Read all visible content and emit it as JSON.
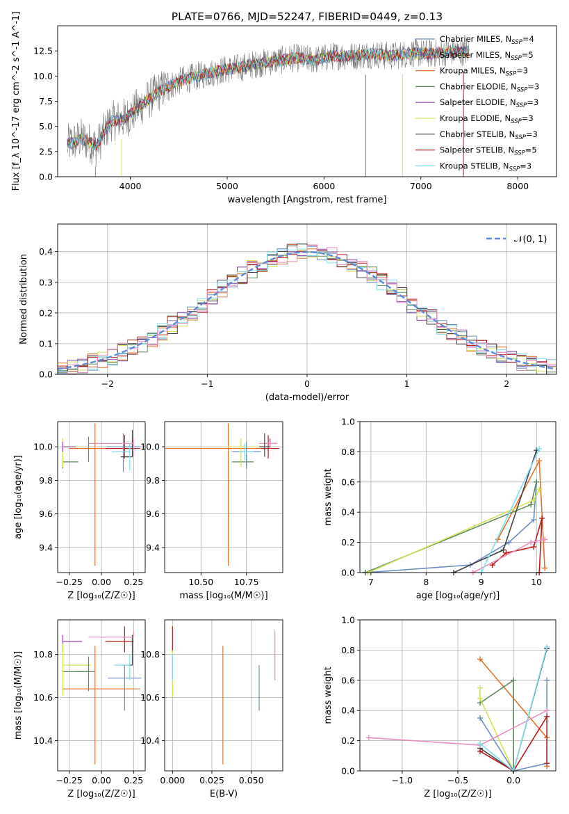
{
  "chart_data": [
    {
      "type": "line",
      "title": "PLATE=0766, MJD=52247, FIBERID=0449, z=0.13",
      "xlabel": "wavelength [Angstrom, rest frame]",
      "ylabel": "Flux [f_λ 10^-17 erg cm^-2 s^-1 A^-1]",
      "xlim": [
        3250,
        8400
      ],
      "ylim": [
        0,
        15
      ],
      "xticks": [
        "4000",
        "5000",
        "6000",
        "7000",
        "8000"
      ],
      "yticks": [
        "0.0",
        "2.5",
        "5.0",
        "7.5",
        "10.0",
        "12.5"
      ],
      "legend_position": "top-right",
      "spectrum_envelope": {
        "x": [
          3350,
          3500,
          3650,
          3800,
          3950,
          4100,
          4300,
          4500,
          4700,
          4900,
          5100,
          5300,
          5500,
          5700,
          5900,
          6100,
          6300,
          6500,
          6700,
          6900,
          7100,
          7300,
          7500
        ],
        "y": [
          3.2,
          3.8,
          3.0,
          5.5,
          5.8,
          7.0,
          8.5,
          9.5,
          10.0,
          10.5,
          10.8,
          11.2,
          11.5,
          11.8,
          11.6,
          12.0,
          12.0,
          12.2,
          12.0,
          12.3,
          12.2,
          12.4,
          12.4
        ]
      },
      "series": [
        {
          "name": "Chabrier MILES, N_SSP=4",
          "color": "#6c8ebf"
        },
        {
          "name": "Salpeter MILES, N_SSP=5",
          "color": "#5c6bc0"
        },
        {
          "name": "Kroupa MILES, N_SSP=3",
          "color": "#e0712c"
        },
        {
          "name": "Chabrier ELODIE, N_SSP=3",
          "color": "#5e8a5e"
        },
        {
          "name": "Salpeter ELODIE, N_SSP=3",
          "color": "#8e44ad"
        },
        {
          "name": "Kroupa ELODIE, N_SSP=3",
          "color": "#d4e157"
        },
        {
          "name": "Chabrier STELIB, N_SSP=3",
          "color": "#424242"
        },
        {
          "name": "Salpeter STELIB, N_SSP=5",
          "color": "#b71c1c"
        },
        {
          "name": "Kroupa STELIB, N_SSP=3",
          "color": "#80deea"
        }
      ]
    },
    {
      "type": "line",
      "xlabel": "(data-model)/error",
      "ylabel": "Normed distribution",
      "xlim": [
        -2.5,
        2.5
      ],
      "ylim": [
        0,
        0.49
      ],
      "xticks": [
        "−2",
        "−1",
        "0",
        "1",
        "2"
      ],
      "yticks": [
        "0.0",
        "0.1",
        "0.2",
        "0.3",
        "0.4"
      ],
      "grid": true,
      "legend_position": "top-right",
      "reference": {
        "name": "𝒩(0, 1)",
        "mean": 0,
        "sigma": 1,
        "color": "#5b8bd6"
      },
      "histogram_bin_width": 0.1
    },
    {
      "type": "scatter",
      "xlabel": "Z [log₁₀(Z/Z☉)]",
      "ylabel": "age  [log₁₀(age/yr)]",
      "xlim": [
        -0.34,
        0.34
      ],
      "ylim": [
        9.25,
        10.15
      ],
      "xticks": [
        "−0.25",
        "0.00",
        "0.25"
      ],
      "yticks": [
        "9.4",
        "9.6",
        "9.8",
        "10.0"
      ],
      "points": [
        {
          "x": -0.3,
          "y": 9.91,
          "color": "#5e8a5e",
          "xerr": [
            0.0,
            0.12
          ],
          "yerr": [
            0.04,
            0.04
          ]
        },
        {
          "x": -0.3,
          "y": 10.0,
          "color": "#d4e157",
          "xerr": [
            0.0,
            0.15
          ],
          "yerr": [
            0.12,
            0.05
          ]
        },
        {
          "x": -0.3,
          "y": 10.0,
          "color": "#8e44ad",
          "xerr": [
            0.0,
            0.1
          ],
          "yerr": [
            0.03,
            0.03
          ]
        },
        {
          "x": -0.1,
          "y": 9.99,
          "color": "#5e8a5e",
          "xerr": [
            0.06,
            0.06
          ],
          "yerr": [
            0.08,
            0.07
          ]
        },
        {
          "x": -0.05,
          "y": 9.99,
          "color": "#e0712c",
          "xerr": [
            0.2,
            0.3
          ],
          "yerr": [
            0.7,
            0.15
          ]
        },
        {
          "x": 0.18,
          "y": 9.99,
          "color": "#b71c1c",
          "xerr": [
            0.15,
            0.12
          ],
          "yerr": [
            0.06,
            0.08
          ]
        },
        {
          "x": 0.17,
          "y": 10.0,
          "color": "#6c8ebf",
          "xerr": [
            0.13,
            0.13
          ],
          "yerr": [
            0.15,
            0.08
          ]
        },
        {
          "x": 0.24,
          "y": 9.94,
          "color": "#424242",
          "xerr": [
            0.09,
            0.0
          ],
          "yerr": [
            0.0,
            0.16
          ]
        },
        {
          "x": 0.25,
          "y": 10.02,
          "color": "#e88fc0",
          "xerr": [
            0.35,
            0.0
          ],
          "yerr": [
            0.08,
            0.03
          ]
        },
        {
          "x": 0.22,
          "y": 9.97,
          "color": "#80deea",
          "xerr": [
            0.14,
            0.0
          ],
          "yerr": [
            0.11,
            0.05
          ]
        }
      ]
    },
    {
      "type": "scatter",
      "xlabel": "mass [log₁₀(M/M☉)]",
      "xlim": [
        10.3,
        10.95
      ],
      "ylim": [
        9.25,
        10.15
      ],
      "xticks": [
        "10.50",
        "10.75"
      ],
      "yticks": [
        "9.4",
        "9.6",
        "9.8",
        "10.0"
      ],
      "points": [
        {
          "x": 10.65,
          "y": 9.99,
          "color": "#e0712c",
          "xerr": [
            0.36,
            0.2
          ],
          "yerr": [
            0.7,
            0.15
          ]
        },
        {
          "x": 10.75,
          "y": 9.91,
          "color": "#5e8a5e",
          "xerr": [
            0.08,
            0.04
          ],
          "yerr": [
            0.04,
            0.04
          ]
        },
        {
          "x": 10.72,
          "y": 10.0,
          "color": "#d4e157",
          "xerr": [
            0.08,
            0.12
          ],
          "yerr": [
            0.12,
            0.05
          ]
        },
        {
          "x": 10.87,
          "y": 9.99,
          "color": "#b71c1c",
          "xerr": [
            0.04,
            0.06
          ],
          "yerr": [
            0.06,
            0.08
          ]
        },
        {
          "x": 10.88,
          "y": 10.02,
          "color": "#8e44ad",
          "xerr": [
            0.04,
            0.04
          ],
          "yerr": [
            0.03,
            0.03
          ]
        },
        {
          "x": 10.75,
          "y": 9.97,
          "color": "#6c8ebf",
          "xerr": [
            0.08,
            0.08
          ],
          "yerr": [
            0.1,
            0.06
          ]
        },
        {
          "x": 10.88,
          "y": 10.02,
          "color": "#e88fc0",
          "xerr": [
            0.06,
            0.04
          ],
          "yerr": [
            0.03,
            0.01
          ]
        },
        {
          "x": 10.85,
          "y": 10.0,
          "color": "#424242",
          "xerr": [
            0.03,
            0.03
          ],
          "yerr": [
            0.06,
            0.08
          ]
        },
        {
          "x": 10.74,
          "y": 9.97,
          "color": "#80deea",
          "xerr": [
            0.03,
            0.05
          ],
          "yerr": [
            0.05,
            0.05
          ]
        }
      ]
    },
    {
      "type": "line",
      "xlabel": "age  [log₁₀(age/yr)]",
      "ylabel": "mass weight",
      "xlim": [
        6.8,
        10.35
      ],
      "ylim": [
        0,
        1
      ],
      "xticks": [
        "7",
        "8",
        "9",
        "10"
      ],
      "yticks": [
        "0.0",
        "0.2",
        "0.4",
        "0.6",
        "0.8",
        "1.0"
      ],
      "grid": true,
      "series": [
        {
          "color": "#6c8ebf",
          "x": [
            6.9,
            8.8,
            9.5,
            9.95,
            10.0
          ],
          "y": [
            0.0,
            0.05,
            0.2,
            0.35,
            0.6
          ]
        },
        {
          "color": "#e0712c",
          "x": [
            9.3,
            10.05,
            10.15
          ],
          "y": [
            0.22,
            0.74,
            0.03
          ]
        },
        {
          "color": "#5e8a5e",
          "x": [
            6.9,
            9.9,
            10.0
          ],
          "y": [
            0.0,
            0.45,
            0.6
          ]
        },
        {
          "color": "#d4e157",
          "x": [
            6.95,
            9.95,
            10.05
          ],
          "y": [
            0.0,
            0.48,
            0.55
          ]
        },
        {
          "color": "#424242",
          "x": [
            8.5,
            9.4,
            10.0
          ],
          "y": [
            0.0,
            0.15,
            0.81
          ]
        },
        {
          "color": "#b71c1c",
          "x": [
            9.2,
            9.45,
            9.95,
            10.1,
            10.05
          ],
          "y": [
            0.05,
            0.13,
            0.17,
            0.36,
            0.0
          ]
        },
        {
          "color": "#e88fc0",
          "x": [
            8.85,
            9.9,
            10.15
          ],
          "y": [
            0.0,
            0.2,
            0.22
          ]
        },
        {
          "color": "#80deea",
          "x": [
            9.0,
            10.05
          ],
          "y": [
            0.0,
            0.82
          ]
        }
      ]
    },
    {
      "type": "scatter",
      "xlabel": "Z [log₁₀(Z/Z☉)]",
      "ylabel": "mass [log₁₀(M/M☉)]",
      "xlim": [
        -0.34,
        0.34
      ],
      "ylim": [
        10.26,
        10.96
      ],
      "xticks": [
        "−0.25",
        "0.00",
        "0.25"
      ],
      "yticks": [
        "10.4",
        "10.6",
        "10.8"
      ],
      "points": [
        {
          "x": -0.3,
          "y": 10.86,
          "color": "#8e44ad",
          "xerr": [
            0.0,
            0.15
          ],
          "yerr": [
            0.05,
            0.03
          ]
        },
        {
          "x": -0.3,
          "y": 10.72,
          "color": "#5e8a5e",
          "xerr": [
            0.0,
            0.2
          ],
          "yerr": [
            0.0,
            0.0
          ]
        },
        {
          "x": -0.3,
          "y": 10.75,
          "color": "#d4e157",
          "xerr": [
            0.0,
            0.22
          ],
          "yerr": [
            0.14,
            0.1
          ]
        },
        {
          "x": -0.1,
          "y": 10.72,
          "color": "#5e8a5e",
          "xerr": [
            0.1,
            0.05
          ],
          "yerr": [
            0.09,
            0.07
          ]
        },
        {
          "x": -0.05,
          "y": 10.64,
          "color": "#e0712c",
          "xerr": [
            0.25,
            0.35
          ],
          "yerr": [
            0.35,
            0.2
          ]
        },
        {
          "x": 0.18,
          "y": 10.86,
          "color": "#b71c1c",
          "xerr": [
            0.15,
            0.07
          ],
          "yerr": [
            0.05,
            0.07
          ]
        },
        {
          "x": 0.18,
          "y": 10.69,
          "color": "#6c8ebf",
          "xerr": [
            0.13,
            0.13
          ],
          "yerr": [
            0.15,
            0.06
          ]
        },
        {
          "x": 0.24,
          "y": 10.75,
          "color": "#424242",
          "xerr": [
            0.08,
            0.0
          ],
          "yerr": [
            0.0,
            0.14
          ]
        },
        {
          "x": 0.25,
          "y": 10.88,
          "color": "#e88fc0",
          "xerr": [
            0.35,
            0.0
          ],
          "yerr": [
            0.0,
            0.03
          ]
        },
        {
          "x": 0.22,
          "y": 10.75,
          "color": "#80deea",
          "xerr": [
            0.12,
            0.0
          ],
          "yerr": [
            0.07,
            0.05
          ]
        }
      ]
    },
    {
      "type": "scatter",
      "xlabel": "E(B-V)",
      "xlim": [
        -0.005,
        0.07
      ],
      "ylim": [
        10.26,
        10.96
      ],
      "xticks": [
        "0.000",
        "0.025",
        "0.050"
      ],
      "yticks": [
        "10.4",
        "10.6",
        "10.8"
      ],
      "points": [
        {
          "x": 0.0,
          "y": 10.86,
          "color": "#b71c1c",
          "xerr": [
            0,
            0
          ],
          "yerr": [
            0.05,
            0.07
          ]
        },
        {
          "x": 0.0,
          "y": 10.72,
          "color": "#d4e157",
          "xerr": [
            0,
            0
          ],
          "yerr": [
            0.12,
            0.1
          ]
        },
        {
          "x": 0.0,
          "y": 10.75,
          "color": "#80deea",
          "xerr": [
            0,
            0
          ],
          "yerr": [
            0.07,
            0.05
          ]
        },
        {
          "x": 0.032,
          "y": 10.6,
          "color": "#e0712c",
          "xerr": [
            0,
            0
          ],
          "yerr": [
            0.31,
            0.24
          ]
        },
        {
          "x": 0.055,
          "y": 10.64,
          "color": "#6c8ebf",
          "xerr": [
            0,
            0
          ],
          "yerr": [
            0.1,
            0.11
          ]
        },
        {
          "x": 0.065,
          "y": 10.8,
          "color": "#e88fc0",
          "xerr": [
            0,
            0
          ],
          "yerr": [
            0.12,
            0.11
          ]
        }
      ]
    },
    {
      "type": "line",
      "xlabel": "Z [log₁₀(Z/Z☉)]",
      "ylabel": "mass weight",
      "xlim": [
        -1.38,
        0.38
      ],
      "ylim": [
        0,
        1
      ],
      "xticks": [
        "−1.0",
        "−0.5",
        "0.0"
      ],
      "yticks": [
        "0.0",
        "0.2",
        "0.4",
        "0.6",
        "0.8",
        "1.0"
      ],
      "grid": true,
      "series": [
        {
          "color": "#e0712c",
          "x": [
            -0.3,
            0.3,
            0.3
          ],
          "y": [
            0.74,
            0.22,
            0.03
          ]
        },
        {
          "color": "#5e8a5e",
          "x": [
            -0.3,
            0.0,
            0.0
          ],
          "y": [
            0.45,
            0.6,
            0.0
          ]
        },
        {
          "color": "#d4e157",
          "x": [
            -0.3,
            -0.3,
            0.0
          ],
          "y": [
            0.55,
            0.48,
            0.0
          ]
        },
        {
          "color": "#6c8ebf",
          "x": [
            -0.3,
            0.0,
            0.3,
            0.3
          ],
          "y": [
            0.35,
            0.0,
            0.05,
            0.6
          ]
        },
        {
          "color": "#424242",
          "x": [
            -0.3,
            0.0,
            0.3
          ],
          "y": [
            0.15,
            0.0,
            0.81
          ]
        },
        {
          "color": "#b71c1c",
          "x": [
            -0.3,
            0.0,
            0.3,
            0.3
          ],
          "y": [
            0.13,
            0.0,
            0.36,
            0.05
          ]
        },
        {
          "color": "#e88fc0",
          "x": [
            -1.3,
            -0.3,
            0.3
          ],
          "y": [
            0.22,
            0.17,
            0.4
          ]
        },
        {
          "color": "#80deea",
          "x": [
            -0.3,
            0.0,
            0.3
          ],
          "y": [
            0.18,
            0.0,
            0.82
          ]
        }
      ]
    }
  ]
}
